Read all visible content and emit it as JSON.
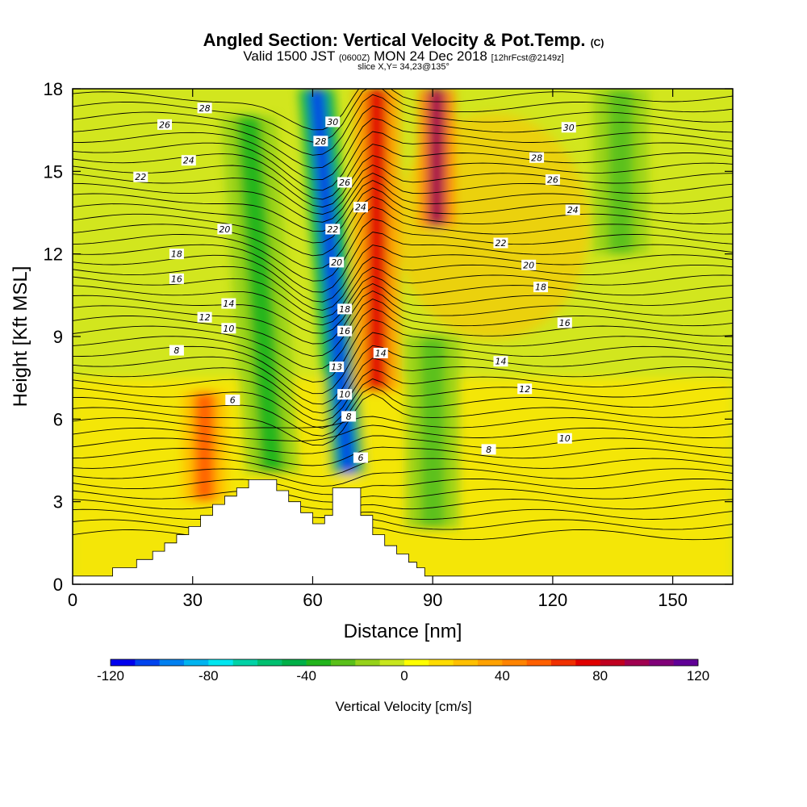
{
  "title": {
    "main": "Angled Section: Vertical Velocity & Pot.Temp.",
    "copyright": "(C)",
    "valid_prefix": "Valid 1500 JST",
    "valid_utc": "(0600Z)",
    "valid_date": "MON 24 Dec 2018",
    "valid_fcst": "[12hrFcst@2149z]",
    "slice": "slice X,Y= 34,23@135°"
  },
  "chart_data": {
    "type": "heatmap",
    "xlabel": "Distance [nm]",
    "ylabel": "Height [Kft MSL]",
    "xlim": [
      0,
      165
    ],
    "ylim": [
      0,
      18
    ],
    "x_ticks": [
      "0",
      "30",
      "60",
      "90",
      "120",
      "150"
    ],
    "y_ticks": [
      "0",
      "3",
      "6",
      "9",
      "12",
      "15",
      "18"
    ],
    "colorbar": {
      "label": "Vertical Velocity [cm/s]",
      "range": [
        -120,
        120
      ],
      "tick_labels": [
        "-120",
        "-80",
        "-40",
        "0",
        "40",
        "80",
        "120"
      ],
      "colors": [
        "#0000ee",
        "#0044ee",
        "#0080f0",
        "#00b4f0",
        "#00e6f0",
        "#00d2a6",
        "#00c070",
        "#00b048",
        "#22b41c",
        "#5ac01a",
        "#96d21a",
        "#c8e61e",
        "#ffff00",
        "#ffdc00",
        "#ffc000",
        "#ffa200",
        "#ff8400",
        "#ff6000",
        "#f03000",
        "#e00000",
        "#c00020",
        "#a00050",
        "#800078",
        "#600096"
      ]
    },
    "vertical_velocity_features": [
      {
        "name": "downdraft",
        "x": 69,
        "height_kft": [
          4,
          18
        ],
        "min_cm_s": -110
      },
      {
        "name": "updraft",
        "x": 76,
        "height_kft": [
          7,
          18
        ],
        "max_cm_s": 70
      },
      {
        "name": "updraft",
        "x": 91,
        "height_kft": [
          13,
          18
        ],
        "max_cm_s": 90
      },
      {
        "name": "updraft",
        "x": 33,
        "height_kft": [
          3,
          7
        ],
        "max_cm_s": 50
      },
      {
        "name": "downdraft",
        "x": 50,
        "height_kft": [
          4,
          17
        ],
        "min_cm_s": -40
      },
      {
        "name": "downdraft",
        "x": 90,
        "height_kft": [
          2,
          9
        ],
        "min_cm_s": -30
      },
      {
        "name": "downdraft",
        "x": 137,
        "height_kft": [
          12,
          18
        ],
        "min_cm_s": -25
      }
    ],
    "terrain": {
      "x": [
        0,
        10,
        16,
        20,
        23,
        26,
        29,
        32,
        35,
        38,
        41,
        44,
        48,
        51,
        54,
        57,
        60,
        63,
        65,
        70,
        72,
        75,
        78,
        81,
        84,
        86,
        88,
        165
      ],
      "height_kft": [
        0.3,
        0.6,
        0.9,
        1.2,
        1.5,
        1.8,
        2.1,
        2.5,
        2.9,
        3.2,
        3.5,
        3.8,
        3.8,
        3.4,
        3.0,
        2.6,
        2.2,
        2.5,
        3.5,
        3.5,
        2.5,
        1.8,
        1.4,
        1.1,
        0.8,
        0.6,
        0.3,
        0.3
      ]
    },
    "potential_temperature_labels": [
      {
        "label": "28",
        "x": 33,
        "y": 17.3
      },
      {
        "label": "26",
        "x": 23,
        "y": 16.7
      },
      {
        "label": "24",
        "x": 29,
        "y": 15.4
      },
      {
        "label": "22",
        "x": 17,
        "y": 14.8
      },
      {
        "label": "20",
        "x": 38,
        "y": 12.9
      },
      {
        "label": "18",
        "x": 26,
        "y": 12.0
      },
      {
        "label": "16",
        "x": 26,
        "y": 11.1
      },
      {
        "label": "14",
        "x": 39,
        "y": 10.2
      },
      {
        "label": "12",
        "x": 33,
        "y": 9.7
      },
      {
        "label": "10",
        "x": 39,
        "y": 9.3
      },
      {
        "label": "8",
        "x": 26,
        "y": 8.5
      },
      {
        "label": "6",
        "x": 40,
        "y": 6.7
      },
      {
        "label": "30",
        "x": 65,
        "y": 16.8
      },
      {
        "label": "28",
        "x": 62,
        "y": 16.1
      },
      {
        "label": "26",
        "x": 68,
        "y": 14.6
      },
      {
        "label": "24",
        "x": 72,
        "y": 13.7
      },
      {
        "label": "22",
        "x": 65,
        "y": 12.9
      },
      {
        "label": "20",
        "x": 66,
        "y": 11.7
      },
      {
        "label": "18",
        "x": 68,
        "y": 10.0
      },
      {
        "label": "16",
        "x": 68,
        "y": 9.2
      },
      {
        "label": "13",
        "x": 66,
        "y": 7.9
      },
      {
        "label": "10",
        "x": 68,
        "y": 6.9
      },
      {
        "label": "8",
        "x": 69,
        "y": 6.1
      },
      {
        "label": "6",
        "x": 72,
        "y": 4.6
      },
      {
        "label": "14",
        "x": 77,
        "y": 8.4
      },
      {
        "label": "30",
        "x": 124,
        "y": 16.6
      },
      {
        "label": "28",
        "x": 116,
        "y": 15.5
      },
      {
        "label": "26",
        "x": 120,
        "y": 14.7
      },
      {
        "label": "24",
        "x": 125,
        "y": 13.6
      },
      {
        "label": "22",
        "x": 107,
        "y": 12.4
      },
      {
        "label": "20",
        "x": 114,
        "y": 11.6
      },
      {
        "label": "18",
        "x": 117,
        "y": 10.8
      },
      {
        "label": "16",
        "x": 123,
        "y": 9.5
      },
      {
        "label": "14",
        "x": 107,
        "y": 8.1
      },
      {
        "label": "12",
        "x": 113,
        "y": 7.1
      },
      {
        "label": "10",
        "x": 123,
        "y": 5.3
      },
      {
        "label": "8",
        "x": 104,
        "y": 4.9
      }
    ]
  }
}
